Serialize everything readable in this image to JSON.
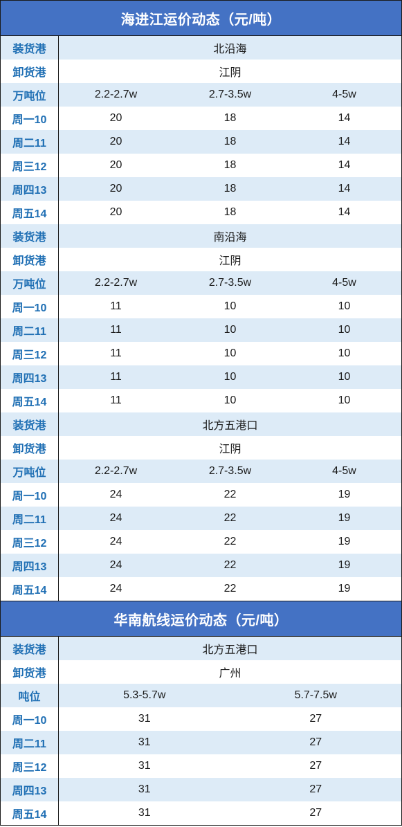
{
  "section1": {
    "title": "海进江运价动态（元/吨）",
    "blocks": [
      {
        "load_label": "装货港",
        "load_port": "北沿海",
        "unload_label": "卸货港",
        "unload_port": "江阴",
        "tonnage_label": "万吨位",
        "tonnage": [
          "2.2-2.7w",
          "2.7-3.5w",
          "4-5w"
        ],
        "days": [
          {
            "day": "周一10",
            "values": [
              "20",
              "18",
              "14"
            ]
          },
          {
            "day": "周二11",
            "values": [
              "20",
              "18",
              "14"
            ]
          },
          {
            "day": "周三12",
            "values": [
              "20",
              "18",
              "14"
            ]
          },
          {
            "day": "周四13",
            "values": [
              "20",
              "18",
              "14"
            ]
          },
          {
            "day": "周五14",
            "values": [
              "20",
              "18",
              "14"
            ]
          }
        ]
      },
      {
        "load_label": "装货港",
        "load_port": "南沿海",
        "unload_label": "卸货港",
        "unload_port": "江阴",
        "tonnage_label": "万吨位",
        "tonnage": [
          "2.2-2.7w",
          "2.7-3.5w",
          "4-5w"
        ],
        "days": [
          {
            "day": "周一10",
            "values": [
              "11",
              "10",
              "10"
            ]
          },
          {
            "day": "周二11",
            "values": [
              "11",
              "10",
              "10"
            ]
          },
          {
            "day": "周三12",
            "values": [
              "11",
              "10",
              "10"
            ]
          },
          {
            "day": "周四13",
            "values": [
              "11",
              "10",
              "10"
            ]
          },
          {
            "day": "周五14",
            "values": [
              "11",
              "10",
              "10"
            ]
          }
        ]
      },
      {
        "load_label": "装货港",
        "load_port": "北方五港口",
        "unload_label": "卸货港",
        "unload_port": "江阴",
        "tonnage_label": "万吨位",
        "tonnage": [
          "2.2-2.7w",
          "2.7-3.5w",
          "4-5w"
        ],
        "days": [
          {
            "day": "周一10",
            "values": [
              "24",
              "22",
              "19"
            ]
          },
          {
            "day": "周二11",
            "values": [
              "24",
              "22",
              "19"
            ]
          },
          {
            "day": "周三12",
            "values": [
              "24",
              "22",
              "19"
            ]
          },
          {
            "day": "周四13",
            "values": [
              "24",
              "22",
              "19"
            ]
          },
          {
            "day": "周五14",
            "values": [
              "24",
              "22",
              "19"
            ]
          }
        ]
      }
    ]
  },
  "section2": {
    "title": "华南航线运价动态（元/吨）",
    "blocks": [
      {
        "load_label": "装货港",
        "load_port": "北方五港口",
        "unload_label": "卸货港",
        "unload_port": "广州",
        "tonnage_label": "吨位",
        "tonnage": [
          "5.3-5.7w",
          "5.7-7.5w"
        ],
        "days": [
          {
            "day": "周一10",
            "values": [
              "31",
              "27"
            ]
          },
          {
            "day": "周二11",
            "values": [
              "31",
              "27"
            ]
          },
          {
            "day": "周三12",
            "values": [
              "31",
              "27"
            ]
          },
          {
            "day": "周四13",
            "values": [
              "31",
              "27"
            ]
          },
          {
            "day": "周五14",
            "values": [
              "31",
              "27"
            ]
          }
        ]
      }
    ]
  },
  "colors": {
    "title_bg": "#4472c4",
    "row_alt_bg": "#ddebf7",
    "label_text": "#1f6fb4"
  }
}
